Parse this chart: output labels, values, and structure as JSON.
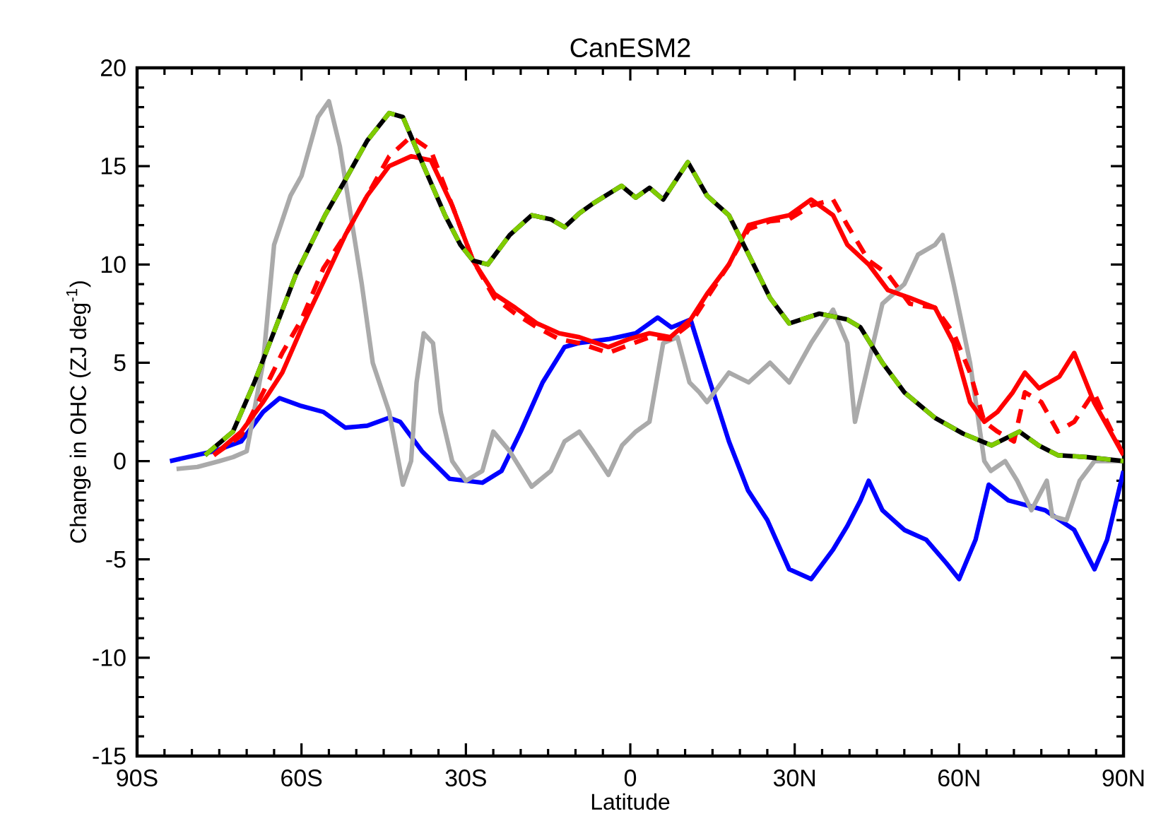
{
  "chart_data": {
    "type": "line",
    "title": "CanESM2",
    "xlabel": "Latitude",
    "ylabel": "Change in OHC (ZJ deg$^{-1}$)",
    "xlim": [
      -90,
      90
    ],
    "ylim": [
      -15,
      20
    ],
    "xticks": [
      {
        "value": -90,
        "label": "90S"
      },
      {
        "value": -60,
        "label": "60S"
      },
      {
        "value": -30,
        "label": "30S"
      },
      {
        "value": 0,
        "label": "0"
      },
      {
        "value": 30,
        "label": "30N"
      },
      {
        "value": 60,
        "label": "60N"
      },
      {
        "value": 90,
        "label": "90N"
      }
    ],
    "yticks": [
      -15,
      -10,
      -5,
      0,
      5,
      10,
      15,
      20
    ],
    "grid": false,
    "marker": "none",
    "series": [
      {
        "color": "#0000ff",
        "line_style": "solid",
        "x": [
          -84,
          -76,
          -71,
          -67,
          -64,
          -60,
          -56,
          -52,
          -48,
          -44,
          -42,
          -38,
          -33,
          -27,
          -23.5,
          -20,
          -16,
          -12,
          -9.5,
          -4,
          1,
          5,
          7.5,
          11,
          14,
          18,
          21.5,
          25,
          29,
          33,
          37,
          39.6,
          42,
          43.5,
          46,
          50,
          54,
          57.7,
          60,
          63,
          65.4,
          69,
          75.7,
          81,
          84.7,
          87,
          90
        ],
        "values": [
          0,
          0.5,
          1,
          2.5,
          3.2,
          2.8,
          2.5,
          1.7,
          1.8,
          2.2,
          2,
          0.5,
          -0.9,
          -1.1,
          -0.5,
          1.5,
          4,
          5.8,
          6,
          6.2,
          6.5,
          7.3,
          6.8,
          7.2,
          4.5,
          1,
          -1.5,
          -3,
          -5.5,
          -6,
          -4.5,
          -3.3,
          -2,
          -1,
          -2.5,
          -3.5,
          -4,
          -5.2,
          -6,
          -4,
          -1.2,
          -2,
          -2.5,
          -3.5,
          -5.5,
          -4,
          -0.5
        ]
      },
      {
        "color": "#aaaaaa",
        "line_style": "solid",
        "x": [
          -82.8,
          -79,
          -75,
          -72.5,
          -70,
          -67,
          -65,
          -62,
          -60,
          -57,
          -55,
          -53,
          -49,
          -47,
          -44,
          -41.5,
          -40,
          -39,
          -37.7,
          -36,
          -34.6,
          -32.5,
          -30,
          -27,
          -25,
          -22,
          -18,
          -14.5,
          -12,
          -9.3,
          -6.8,
          -4,
          -1.5,
          1,
          3.5,
          6,
          8.6,
          10.8,
          12.6,
          14,
          18,
          21.6,
          25.5,
          29,
          33,
          37,
          39.6,
          41,
          43.5,
          46,
          50,
          52.5,
          55.6,
          57,
          59,
          62,
          64.6,
          65.8,
          68.4,
          70.6,
          73.2,
          76,
          77,
          79.6,
          82,
          84.7,
          90
        ],
        "values": [
          -0.4,
          -0.3,
          0,
          0.2,
          0.5,
          5,
          11,
          13.5,
          14.5,
          17.5,
          18.3,
          16,
          9,
          5,
          2.5,
          -1.2,
          0,
          4,
          6.5,
          6,
          2.5,
          0,
          -1,
          -0.5,
          1.5,
          0.5,
          -1.3,
          -0.5,
          1,
          1.5,
          0.5,
          -0.7,
          0.8,
          1.5,
          2,
          6,
          6.3,
          4,
          3.5,
          3,
          4.5,
          4,
          5,
          4,
          6,
          7.7,
          6,
          2,
          5,
          8,
          9,
          10.5,
          11,
          11.5,
          9,
          5,
          0,
          -0.5,
          0,
          -1,
          -2.5,
          -1,
          -2.8,
          -3,
          -1,
          0,
          0
        ]
      },
      {
        "color": "#ff0000",
        "line_style": "dashed",
        "x": [
          -76,
          -71,
          -67,
          -63.5,
          -60,
          -56,
          -52,
          -48,
          -44,
          -40,
          -36.4,
          -32.5,
          -28.7,
          -24.8,
          -21,
          -17,
          -13,
          -9.3,
          -4,
          -0.3,
          3.5,
          7.3,
          11,
          14,
          18,
          21.6,
          25.5,
          29,
          33,
          37,
          39.6,
          43.5,
          47,
          51,
          55.6,
          59,
          62,
          64.6,
          67,
          70,
          72,
          75,
          78,
          81,
          84.6,
          87,
          90
        ],
        "values": [
          0.3,
          1.3,
          3.5,
          5.5,
          7.2,
          9.8,
          11.5,
          13.5,
          15.5,
          16.5,
          15.8,
          13,
          10.2,
          8.3,
          7.5,
          6.8,
          6.2,
          6,
          5.5,
          5.9,
          6.3,
          6.2,
          7,
          8.3,
          10,
          11.8,
          12.2,
          12.3,
          13,
          13.3,
          12,
          10.2,
          9.5,
          8,
          7.8,
          6.5,
          4.5,
          2,
          1.5,
          1,
          3.5,
          3,
          1.5,
          2,
          3.5,
          2,
          0.3
        ]
      },
      {
        "color": "#ff0000",
        "line_style": "solid",
        "x": [
          -76,
          -71,
          -67,
          -63.5,
          -59.6,
          -55.7,
          -52,
          -48,
          -44,
          -40,
          -36.4,
          -32.5,
          -28.7,
          -24.8,
          -21,
          -17,
          -13,
          -9.3,
          -4,
          -0.3,
          3.5,
          7.3,
          11,
          14,
          18,
          21.6,
          25.5,
          29,
          33,
          37,
          39.6,
          43.5,
          47,
          51,
          55.6,
          59,
          62,
          64.6,
          67,
          69.8,
          72,
          74.6,
          78.3,
          81,
          84.6,
          90
        ],
        "values": [
          0.3,
          1.5,
          3,
          4.5,
          7,
          9.3,
          11.5,
          13.5,
          15,
          15.5,
          15.3,
          13,
          10.2,
          8.5,
          7.8,
          7,
          6.5,
          6.3,
          5.8,
          6.2,
          6.5,
          6.3,
          7.2,
          8.5,
          10,
          12,
          12.3,
          12.5,
          13.3,
          12.5,
          11,
          10,
          8.7,
          8.3,
          7.8,
          6,
          3,
          2,
          2.5,
          3.5,
          4.5,
          3.7,
          4.3,
          5.5,
          3,
          0.3
        ]
      },
      {
        "color": "#000000",
        "line_style": "solid",
        "x": [
          -77.6,
          -72.5,
          -68.6,
          -64.7,
          -61,
          -55.7,
          -52,
          -48,
          -44,
          -41.5,
          -37.7,
          -33.8,
          -31,
          -28.7,
          -26,
          -22,
          -18,
          -14.5,
          -12,
          -9.3,
          -6.8,
          -1.6,
          1,
          3.5,
          6,
          10.5,
          14,
          18,
          21.6,
          25.5,
          29,
          34.5,
          39.6,
          42,
          46,
          50,
          55.6,
          60.7,
          65.9,
          71,
          74.5,
          78,
          83.4,
          90
        ],
        "values": [
          0.3,
          1.5,
          4,
          6.8,
          9.5,
          12.5,
          14.3,
          16.3,
          17.7,
          17.5,
          15,
          12.5,
          11,
          10.2,
          10,
          11.5,
          12.5,
          12.3,
          11.9,
          12.6,
          13.1,
          14,
          13.4,
          13.9,
          13.3,
          15.2,
          13.5,
          12.5,
          10.5,
          8.3,
          7,
          7.5,
          7.2,
          6.8,
          5,
          3.5,
          2.2,
          1.4,
          0.8,
          1.5,
          0.8,
          0.3,
          0.2,
          0
        ]
      },
      {
        "color": "#7fcc00",
        "line_style": "dashed",
        "x": [
          -77.6,
          -72.5,
          -68.6,
          -64.7,
          -61,
          -55.7,
          -52,
          -48,
          -44,
          -41.5,
          -37.7,
          -33.8,
          -31,
          -28.7,
          -26,
          -22,
          -18,
          -14.5,
          -12,
          -9.3,
          -6.8,
          -1.6,
          1,
          3.5,
          6,
          10.5,
          14,
          18,
          21.6,
          25.5,
          29,
          34.5,
          39.6,
          42,
          46,
          50,
          55.6,
          60.7,
          65.9,
          71,
          74.5,
          78,
          83.4,
          90
        ],
        "values": [
          0.3,
          1.5,
          4,
          6.8,
          9.5,
          12.5,
          14.3,
          16.3,
          17.7,
          17.5,
          15,
          12.5,
          11,
          10.2,
          10,
          11.5,
          12.5,
          12.3,
          11.9,
          12.6,
          13.1,
          14,
          13.4,
          13.9,
          13.3,
          15.2,
          13.5,
          12.5,
          10.5,
          8.3,
          7,
          7.5,
          7.2,
          6.8,
          5,
          3.5,
          2.2,
          1.4,
          0.8,
          1.5,
          0.8,
          0.3,
          0.2,
          0
        ]
      }
    ]
  }
}
